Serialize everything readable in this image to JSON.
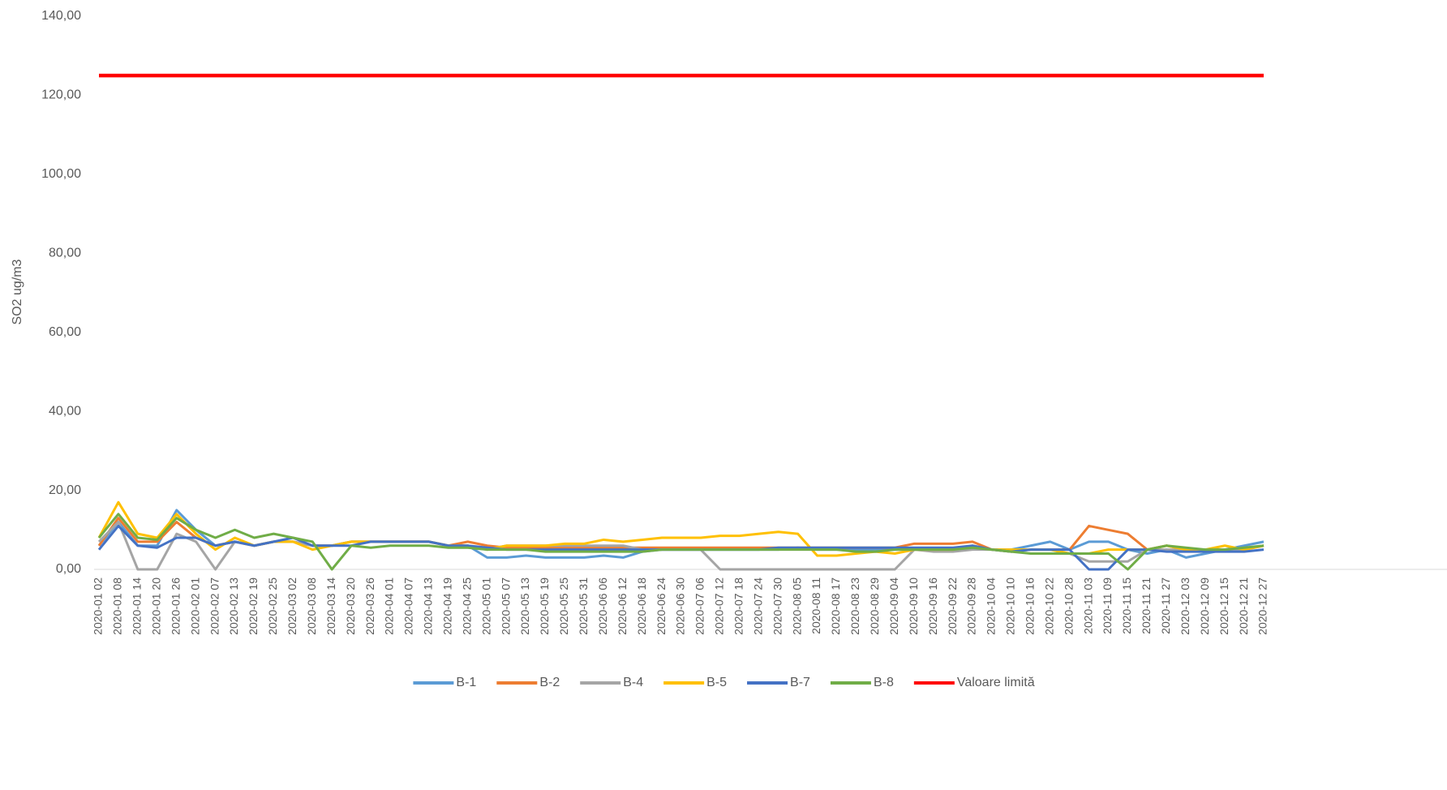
{
  "chart_data": {
    "type": "line",
    "y_label": "SO2 ug/m3",
    "categories": [
      "2020-01 02",
      "2020-01 08",
      "2020-01 14",
      "2020-01 20",
      "2020-01 26",
      "2020-02 01",
      "2020-02 07",
      "2020-02 13",
      "2020-02 19",
      "2020-02 25",
      "2020-03 02",
      "2020-03 08",
      "2020-03 14",
      "2020-03 20",
      "2020-03 26",
      "2020-04 01",
      "2020-04 07",
      "2020-04 13",
      "2020-04 19",
      "2020-04 25",
      "2020-05 01",
      "2020-05 07",
      "2020-05 13",
      "2020-05 19",
      "2020-05 25",
      "2020-05 31",
      "2020-06 06",
      "2020-06 12",
      "2020-06 18",
      "2020-06 24",
      "2020-06 30",
      "2020-07 06",
      "2020-07 12",
      "2020-07 18",
      "2020-07 24",
      "2020-07 30",
      "2020-08 05",
      "2020-08 11",
      "2020-08 17",
      "2020-08 23",
      "2020-08 29",
      "2020-09 04",
      "2020-09 10",
      "2020-09 16",
      "2020-09 22",
      "2020-09 28",
      "2020-10 04",
      "2020-10 10",
      "2020-10 16",
      "2020-10 22",
      "2020-10 28",
      "2020-11 03",
      "2020-11 09",
      "2020-11 15",
      "2020-11 21",
      "2020-11 27",
      "2020-12 03",
      "2020-12 09",
      "2020-12 15",
      "2020-12 21",
      "2020-12 27"
    ],
    "series": [
      {
        "name": "B-1",
        "color": "#5b9bd5",
        "values": [
          6,
          12,
          6,
          6,
          15,
          10,
          6,
          7,
          6,
          7,
          7,
          6,
          6,
          7,
          7,
          7,
          7,
          7,
          6,
          6,
          3,
          3,
          3.5,
          3,
          3,
          3,
          3.5,
          3,
          4.5,
          5,
          5,
          5,
          5,
          5,
          5,
          5,
          5.5,
          5,
          5,
          5,
          5,
          5,
          5,
          5,
          5,
          5.5,
          5,
          5,
          6,
          7,
          5,
          7,
          7,
          5,
          4,
          5,
          3,
          4,
          5,
          6,
          7
        ]
      },
      {
        "name": "B-2",
        "color": "#ed7d31",
        "values": [
          6,
          13,
          7,
          7,
          12,
          8,
          6,
          7,
          6,
          7,
          7,
          6,
          6,
          7,
          7,
          7,
          7,
          7,
          6,
          7,
          6,
          5.5,
          5.5,
          5.5,
          5.5,
          5.5,
          5.5,
          5.5,
          5.5,
          5.5,
          5.5,
          5.5,
          5.5,
          5.5,
          5.5,
          5.5,
          5.5,
          5.5,
          5.5,
          5.5,
          5.5,
          5.5,
          6.5,
          6.5,
          6.5,
          7,
          5,
          4.5,
          5,
          5,
          5,
          11,
          10,
          9,
          5,
          6,
          5,
          5,
          5,
          5,
          6
        ]
      },
      {
        "name": "B-4",
        "color": "#a5a5a5",
        "values": [
          7,
          12,
          0,
          0,
          9,
          7,
          0,
          7,
          6,
          7,
          7,
          6,
          6,
          7,
          7,
          7,
          7,
          7,
          6,
          6,
          5,
          6,
          6,
          6,
          6,
          6,
          6,
          6,
          5,
          5,
          5,
          5,
          0,
          0,
          0,
          0,
          0,
          0,
          0,
          0,
          0,
          0,
          5,
          4.5,
          4.5,
          5,
          5,
          4.5,
          5,
          5,
          4,
          2,
          2,
          2,
          5,
          5,
          5,
          5,
          5,
          5,
          6
        ]
      },
      {
        "name": "B-5",
        "color": "#ffc000",
        "values": [
          8,
          17,
          9,
          8,
          14,
          9,
          5,
          8,
          6,
          7,
          7,
          5,
          6,
          7,
          7,
          7,
          7,
          7,
          6,
          6,
          5,
          6,
          6,
          6,
          6.5,
          6.5,
          7.5,
          7,
          7.5,
          8,
          8,
          8,
          8.5,
          8.5,
          9,
          9.5,
          9,
          3.5,
          3.5,
          4,
          4.5,
          4,
          5,
          5,
          5,
          6,
          5,
          5,
          5,
          5,
          4,
          4,
          5,
          5,
          5,
          6,
          5,
          5,
          6,
          5,
          6
        ]
      },
      {
        "name": "B-7",
        "color": "#4472c4",
        "values": [
          5,
          11,
          6,
          5.5,
          8,
          8,
          6,
          7,
          6,
          7,
          8,
          6,
          6,
          6,
          7,
          7,
          7,
          7,
          6,
          6,
          5.5,
          5,
          5,
          5,
          5,
          5,
          5,
          5,
          5,
          5,
          5,
          5,
          5,
          5,
          5,
          5.5,
          5.5,
          5.5,
          5.5,
          5.5,
          5.5,
          5.5,
          5.5,
          5.5,
          5.5,
          6,
          5,
          4.5,
          5,
          5,
          5,
          0,
          0,
          5,
          5,
          4.5,
          4.5,
          4.5,
          4.5,
          4.5,
          5
        ]
      },
      {
        "name": "B-8",
        "color": "#70ad47",
        "values": [
          8,
          14,
          8,
          7.5,
          13,
          10,
          8,
          10,
          8,
          9,
          8,
          7,
          0,
          6,
          5.5,
          6,
          6,
          6,
          5.5,
          5.5,
          5,
          5,
          5,
          4.5,
          4.5,
          4.5,
          4.5,
          4.5,
          4.5,
          5,
          5,
          5,
          5,
          5,
          5,
          5,
          5,
          5,
          5,
          4.5,
          4.5,
          5,
          5,
          5,
          5,
          5.5,
          5,
          4.5,
          4,
          4,
          4,
          4,
          4,
          0,
          5,
          6,
          5.5,
          5,
          5,
          5.5,
          6
        ]
      },
      {
        "name": "Valoare limită",
        "color": "#ff0000",
        "values": [
          125,
          125,
          125,
          125,
          125,
          125,
          125,
          125,
          125,
          125,
          125,
          125,
          125,
          125,
          125,
          125,
          125,
          125,
          125,
          125,
          125,
          125,
          125,
          125,
          125,
          125,
          125,
          125,
          125,
          125,
          125,
          125,
          125,
          125,
          125,
          125,
          125,
          125,
          125,
          125,
          125,
          125,
          125,
          125,
          125,
          125,
          125,
          125,
          125,
          125,
          125,
          125,
          125,
          125,
          125,
          125,
          125,
          125,
          125,
          125,
          125
        ]
      }
    ],
    "ylim": [
      0,
      140
    ],
    "yticks": [
      {
        "value": 0,
        "label": "0,00"
      },
      {
        "value": 20,
        "label": "20,00"
      },
      {
        "value": 40,
        "label": "40,00"
      },
      {
        "value": 60,
        "label": "60,00"
      },
      {
        "value": 80,
        "label": "80,00"
      },
      {
        "value": 100,
        "label": "100,00"
      },
      {
        "value": 120,
        "label": "120,00"
      },
      {
        "value": 140,
        "label": "140,00"
      }
    ],
    "legend": "bottom"
  }
}
